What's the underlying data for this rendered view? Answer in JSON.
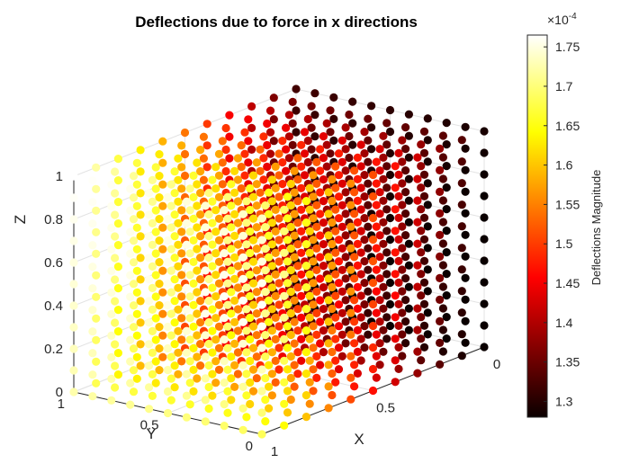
{
  "chart_data": {
    "type": "scatter3d",
    "title": "Deflections due to force in x directions",
    "xlabel": "X",
    "ylabel": "Y",
    "zlabel": "Z",
    "xlim": [
      0,
      1
    ],
    "ylim": [
      0,
      1
    ],
    "zlim": [
      0,
      1
    ],
    "xticks": [
      "0",
      "0.5",
      "1"
    ],
    "yticks": [
      "0",
      "0.5",
      "1"
    ],
    "zticks": [
      "0",
      "0.2",
      "0.4",
      "0.6",
      "0.8",
      "1"
    ],
    "grid": true,
    "points_per_axis": 11,
    "colormap": "hot",
    "colorbar": {
      "label": "Deflections Magnitude",
      "exponent": "×10",
      "exponent_power": "-4",
      "clim": [
        1.28,
        1.765
      ],
      "ticks": [
        "1.3",
        "1.35",
        "1.4",
        "1.45",
        "1.5",
        "1.55",
        "1.6",
        "1.65",
        "1.7",
        "1.75"
      ]
    }
  }
}
